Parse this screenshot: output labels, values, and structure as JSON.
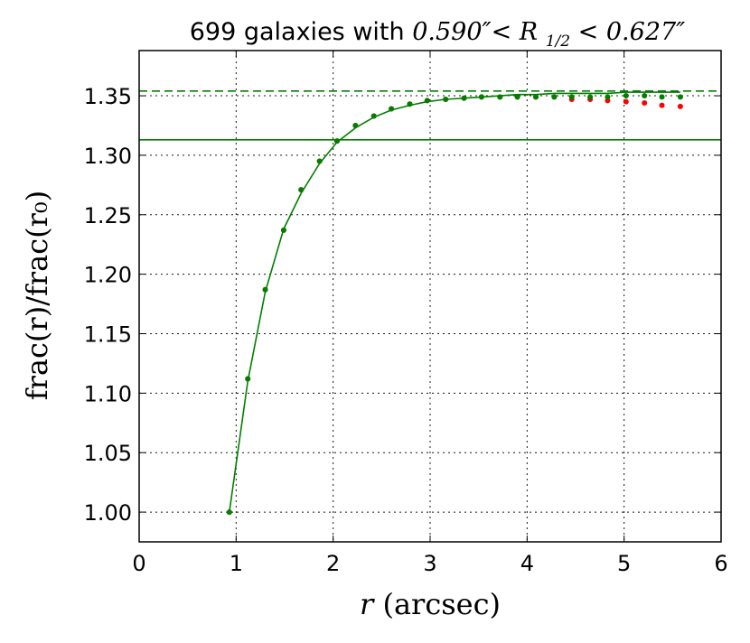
{
  "chart_data": {
    "type": "scatter",
    "title_prefix": "699 galaxies with",
    "title_math": "0.590″< R",
    "title_sub": "1/2",
    "title_math_tail": " < 0.627″",
    "xlabel_var": "r",
    "xlabel_unit": " (arcsec)",
    "ylabel": "frac(r)/frac(r₀)",
    "xlim": [
      0,
      6
    ],
    "ylim": [
      0.975,
      1.388
    ],
    "xticks": [
      0,
      1,
      2,
      3,
      4,
      5,
      6
    ],
    "yticks": [
      1.0,
      1.05,
      1.1,
      1.15,
      1.2,
      1.25,
      1.3,
      1.35
    ],
    "grid": true,
    "colors": {
      "green": "#007f00",
      "red": "#ff0000"
    },
    "hlines": [
      {
        "y": 1.313,
        "style": "solid",
        "color": "#007f00"
      },
      {
        "y": 1.354,
        "style": "dashed",
        "color": "#007f00"
      }
    ],
    "fit_curve": {
      "color": "#007f00",
      "x": [
        0.93,
        1.12,
        1.3,
        1.49,
        1.67,
        1.86,
        2.04,
        2.23,
        2.42,
        2.6,
        2.79,
        2.97,
        3.16,
        3.35,
        3.53,
        3.72,
        3.9,
        4.09,
        4.28,
        4.46,
        4.65,
        4.83,
        5.02,
        5.21,
        5.39,
        5.58
      ],
      "y": [
        1.0,
        1.11,
        1.185,
        1.238,
        1.268,
        1.293,
        1.311,
        1.323,
        1.332,
        1.338,
        1.342,
        1.345,
        1.347,
        1.348,
        1.349,
        1.35,
        1.351,
        1.351,
        1.352,
        1.352,
        1.352,
        1.352,
        1.353,
        1.353,
        1.353,
        1.353
      ]
    },
    "series": [
      {
        "color": "#ff0000",
        "x": [
          0.93,
          1.12,
          1.3,
          1.49,
          1.67,
          1.86,
          2.04,
          2.23,
          2.42,
          2.6,
          2.79,
          2.97,
          3.16,
          3.35,
          3.53,
          3.72,
          3.9,
          4.09,
          4.28,
          4.46,
          4.65,
          4.83,
          5.02,
          5.21,
          5.39,
          5.58
        ],
        "y": [
          1.0,
          1.112,
          1.187,
          1.237,
          1.271,
          1.295,
          1.312,
          1.325,
          1.333,
          1.339,
          1.343,
          1.346,
          1.347,
          1.348,
          1.349,
          1.349,
          1.349,
          1.349,
          1.349,
          1.347,
          1.347,
          1.346,
          1.345,
          1.344,
          1.342,
          1.341
        ]
      },
      {
        "color": "#007f00",
        "x": [
          0.93,
          1.12,
          1.3,
          1.49,
          1.67,
          1.86,
          2.04,
          2.23,
          2.42,
          2.6,
          2.79,
          2.97,
          3.16,
          3.35,
          3.53,
          3.72,
          3.9,
          4.09,
          4.28,
          4.46,
          4.65,
          4.83,
          5.02,
          5.21,
          5.39,
          5.58
        ],
        "y": [
          1.0,
          1.112,
          1.187,
          1.237,
          1.271,
          1.295,
          1.312,
          1.325,
          1.333,
          1.339,
          1.343,
          1.346,
          1.347,
          1.348,
          1.349,
          1.349,
          1.349,
          1.349,
          1.349,
          1.349,
          1.349,
          1.349,
          1.35,
          1.35,
          1.349,
          1.349
        ]
      }
    ]
  }
}
